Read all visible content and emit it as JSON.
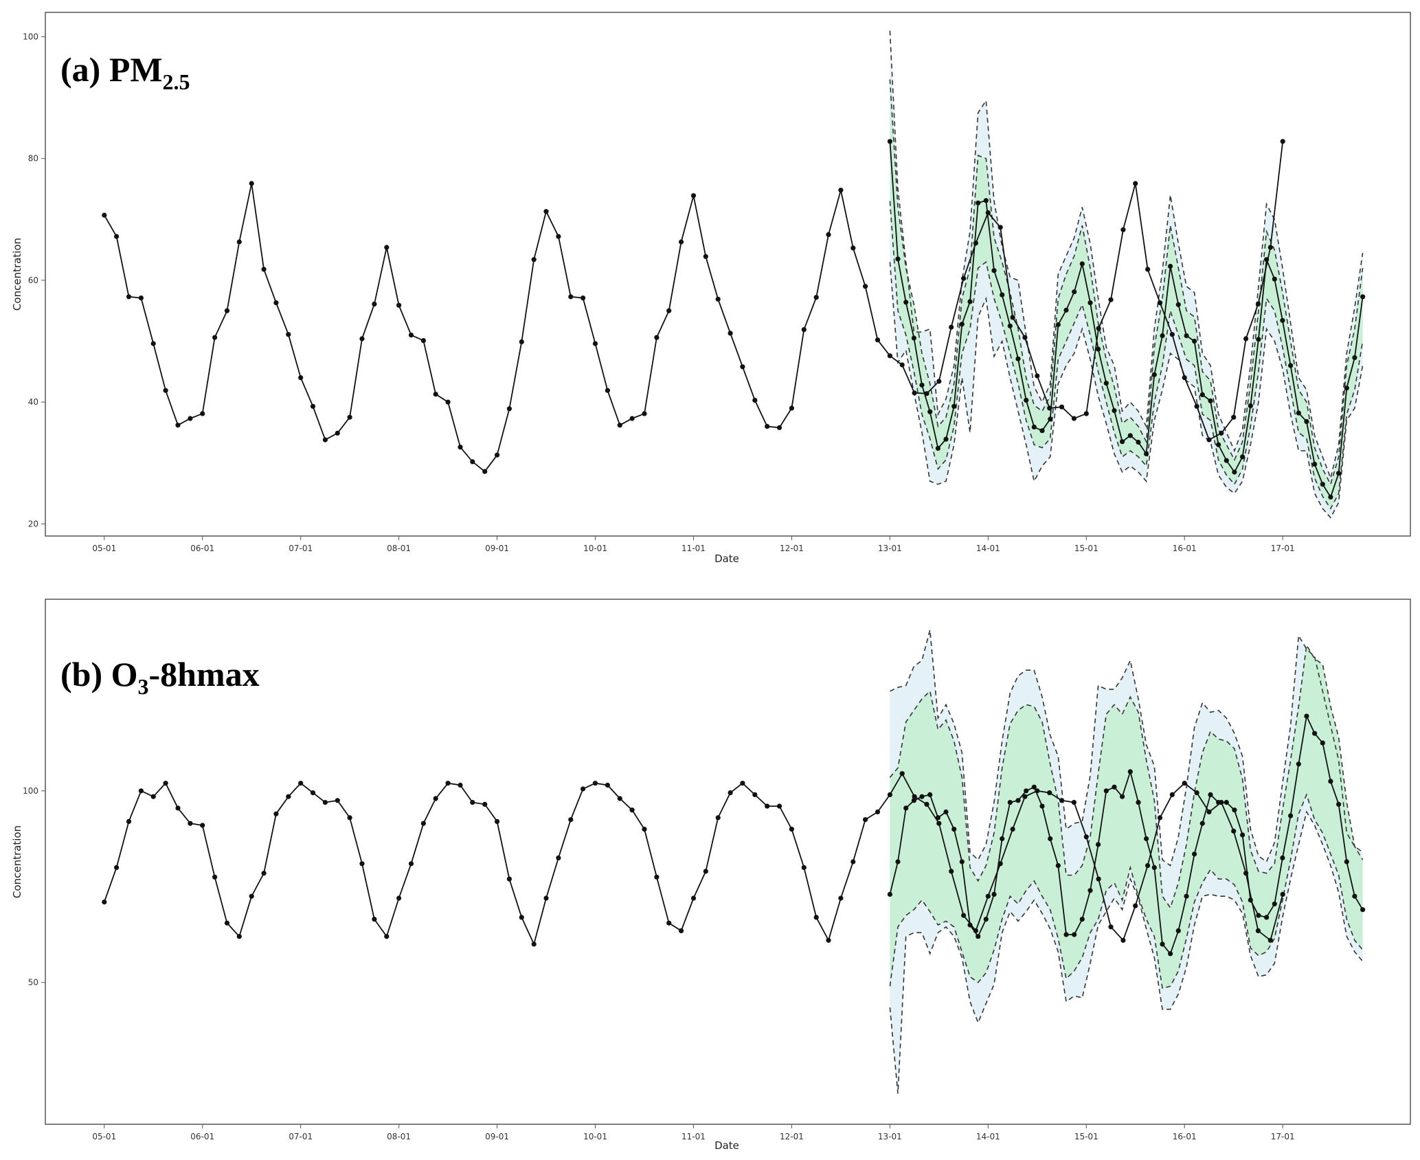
{
  "chart_data": [
    {
      "type": "line",
      "panel_label": "(a)",
      "title_main": "PM",
      "title_sub": "2.5",
      "xlabel": "Date",
      "ylabel": "Concentration",
      "yticks": [
        20,
        40,
        60,
        80,
        100
      ],
      "ylim": [
        18,
        104
      ],
      "xticks": [
        "05-01",
        "06-01",
        "07-01",
        "08-01",
        "09-01",
        "10-01",
        "11-01",
        "12-01",
        "13-01",
        "14-01",
        "15-01",
        "16-01",
        "17-01"
      ],
      "xlim": [
        -0.6,
        13.3
      ],
      "grid": false,
      "colors": {
        "line": "#111111",
        "inner_band": "#c9f0d6",
        "outer_band": "#e4f1f7",
        "bound": "#333333"
      },
      "history": {
        "start": 0,
        "step": 0.125,
        "values": [
          70.7,
          67.2,
          57.3,
          57.1,
          49.6,
          41.9,
          36.2,
          37.3,
          38.1,
          50.6,
          55.0,
          66.3,
          75.9,
          61.8,
          56.3,
          51.1,
          44.0,
          39.3,
          33.8,
          34.9,
          37.5,
          50.4,
          56.1,
          65.4,
          55.9,
          51.0,
          50.1,
          41.3,
          40.0,
          32.6,
          30.2,
          28.6,
          31.3,
          38.9,
          49.9,
          63.4,
          71.3,
          67.2,
          57.3,
          57.1,
          49.6,
          41.9,
          36.2,
          37.3,
          38.1,
          50.6,
          55.0,
          66.3,
          73.9,
          63.9,
          56.9,
          51.3,
          45.8,
          40.3,
          36.0,
          35.8,
          39.0,
          51.9,
          57.2,
          67.5,
          74.8,
          65.3,
          59.0,
          50.2,
          47.6,
          46.1,
          41.5,
          41.4,
          43.4,
          52.3,
          60.3,
          66.1,
          71.1,
          68.7,
          53.9,
          50.6,
          44.3,
          39.0,
          39.2,
          37.3,
          38.1,
          52.1,
          56.8,
          68.3,
          75.9,
          61.8,
          56.3,
          51.1,
          44.0,
          39.3,
          33.8,
          34.9,
          37.5,
          50.4,
          56.1,
          65.4,
          82.8
        ]
      },
      "forecast": {
        "start": 8,
        "step": 0.0816,
        "mean": [
          82.8,
          63.5,
          56.4,
          50.5,
          42.8,
          38.4,
          32.4,
          33.9,
          39.3,
          52.8,
          56.5,
          72.7,
          73.1,
          61.6,
          57.6,
          52.5,
          47.1,
          40.3,
          35.9,
          35.3,
          37.2,
          52.7,
          55.1,
          58.1,
          62.7,
          56.3,
          48.7,
          43.1,
          38.6,
          33.5,
          34.5,
          33.4,
          31.5,
          44.5,
          50.9,
          62.3,
          56.0,
          50.9,
          50.0,
          41.2,
          40.2,
          33.0,
          30.4,
          28.5,
          31.0,
          39.4,
          50.3,
          63.4,
          60.2,
          53.4,
          46.0,
          38.2,
          36.8,
          29.8,
          26.5,
          24.4,
          28.3,
          42.3,
          47.3,
          57.3
        ],
        "inner_lower": [
          73.0,
          55.0,
          51.0,
          45.0,
          38.0,
          34.0,
          29.0,
          30.5,
          36.0,
          48.0,
          52.0,
          62.0,
          63.0,
          57.0,
          53.0,
          48.0,
          43.0,
          37.0,
          33.0,
          32.5,
          34.0,
          47.0,
          50.0,
          53.0,
          56.0,
          51.0,
          45.0,
          40.0,
          35.0,
          31.0,
          32.0,
          31.0,
          29.5,
          40.0,
          46.0,
          55.0,
          51.0,
          47.0,
          46.0,
          38.0,
          37.0,
          30.5,
          28.0,
          26.5,
          29.0,
          36.0,
          45.0,
          57.0,
          55.0,
          49.0,
          42.0,
          35.0,
          34.0,
          27.5,
          24.5,
          22.5,
          25.0,
          38.0,
          42.0,
          50.0
        ],
        "inner_upper": [
          93.0,
          72.0,
          62.0,
          56.0,
          48.0,
          43.0,
          36.0,
          37.5,
          43.0,
          57.0,
          62.0,
          80.5,
          80.0,
          67.0,
          63.0,
          58.0,
          52.0,
          44.0,
          39.5,
          38.5,
          41.0,
          57.0,
          61.0,
          64.0,
          69.0,
          62.0,
          53.0,
          47.0,
          42.5,
          36.5,
          37.5,
          36.0,
          33.5,
          49.0,
          57.0,
          69.0,
          62.0,
          55.0,
          54.0,
          45.0,
          43.5,
          35.5,
          33.0,
          30.5,
          33.5,
          43.0,
          55.0,
          68.0,
          65.0,
          58.0,
          50.0,
          42.0,
          40.0,
          32.5,
          29.0,
          26.5,
          31.0,
          46.0,
          52.0,
          62.0
        ],
        "outer_lower": [
          63.0,
          46.5,
          48.5,
          41.5,
          35.0,
          27.0,
          26.5,
          27.0,
          33.0,
          44.0,
          35.0,
          54.0,
          57.0,
          47.5,
          50.0,
          44.0,
          38.5,
          33.0,
          27.0,
          29.5,
          31.0,
          43.0,
          46.0,
          48.0,
          52.0,
          47.0,
          41.0,
          36.5,
          31.5,
          28.5,
          29.5,
          28.5,
          27.0,
          37.0,
          42.0,
          48.0,
          47.0,
          43.5,
          42.5,
          34.5,
          33.5,
          28.0,
          26.0,
          25.0,
          27.0,
          33.0,
          40.0,
          52.0,
          50.0,
          45.5,
          38.0,
          32.0,
          32.0,
          25.0,
          22.5,
          21.0,
          23.5,
          37.0,
          39.0,
          46.0
        ],
        "outer_upper": [
          101.0,
          75.0,
          63.0,
          51.5,
          51.5,
          52.0,
          38.0,
          40.5,
          46.0,
          60.0,
          68.0,
          87.5,
          89.5,
          73.0,
          65.5,
          60.5,
          60.0,
          51.0,
          42.5,
          40.0,
          43.0,
          61.0,
          64.0,
          67.0,
          72.0,
          66.0,
          57.0,
          49.0,
          46.0,
          38.5,
          40.0,
          38.5,
          36.0,
          52.0,
          61.5,
          74.0,
          66.0,
          59.0,
          58.0,
          48.0,
          46.0,
          38.0,
          35.0,
          32.0,
          35.5,
          46.0,
          59.0,
          72.5,
          70.0,
          62.0,
          53.0,
          44.0,
          42.0,
          34.5,
          31.0,
          27.5,
          33.0,
          48.0,
          55.5,
          64.5
        ]
      }
    },
    {
      "type": "line",
      "panel_label": "(b)",
      "title_main": "O",
      "title_sub": "3",
      "title_tail": "-8hmax",
      "xlabel": "Date",
      "ylabel": "Concentration",
      "yticks": [
        50,
        100
      ],
      "ylim": [
        13,
        150
      ],
      "xticks": [
        "05-01",
        "06-01",
        "07-01",
        "08-01",
        "09-01",
        "10-01",
        "11-01",
        "12-01",
        "13-01",
        "14-01",
        "15-01",
        "16-01",
        "17-01"
      ],
      "xlim": [
        -0.6,
        13.3
      ],
      "grid": false,
      "colors": {
        "line": "#111111",
        "inner_band": "#c9f0d6",
        "outer_band": "#e4f1f7",
        "bound": "#333333"
      },
      "history": {
        "start": 0,
        "step": 0.125,
        "values": [
          71.0,
          80.0,
          92.0,
          100.0,
          98.5,
          102.0,
          95.5,
          91.5,
          91.0,
          77.5,
          65.5,
          62.0,
          72.5,
          78.5,
          94.0,
          98.5,
          102.0,
          99.5,
          97.0,
          97.5,
          93.0,
          81.0,
          66.5,
          62.0,
          72.0,
          81.0,
          91.5,
          98.0,
          102.0,
          101.5,
          97.0,
          96.5,
          92.0,
          77.0,
          67.0,
          60.0,
          72.0,
          82.5,
          92.5,
          100.5,
          102.0,
          101.5,
          98.0,
          95.0,
          90.0,
          77.5,
          65.5,
          63.5,
          72.0,
          79.0,
          93.0,
          99.5,
          102.0,
          99.0,
          96.0,
          96.0,
          90.0,
          80.0,
          67.0,
          61.0,
          72.0,
          81.5,
          92.5,
          94.5,
          99.0,
          104.5,
          98.5,
          96.5,
          91.5,
          79.0,
          67.5,
          63.5,
          72.5,
          81.0,
          90.0,
          98.5,
          100.0,
          99.5,
          97.5,
          97.0,
          88.0,
          77.0,
          64.5,
          61.0,
          70.0,
          80.5,
          93.0,
          99.0,
          102.0,
          99.5,
          94.5,
          97.0,
          89.5,
          78.5,
          63.5,
          61.0,
          73.0
        ]
      },
      "forecast": {
        "start": 8,
        "step": 0.0816,
        "mean": [
          73.0,
          81.5,
          95.5,
          97.5,
          98.5,
          99.0,
          93.0,
          94.5,
          90.0,
          81.5,
          65.0,
          62.0,
          66.5,
          73.0,
          87.5,
          97.0,
          97.5,
          100.0,
          101.0,
          96.0,
          87.5,
          80.5,
          62.5,
          62.5,
          66.5,
          74.0,
          86.0,
          100.0,
          101.0,
          98.5,
          105.0,
          97.0,
          87.5,
          80.0,
          60.0,
          57.5,
          63.5,
          72.5,
          83.5,
          91.5,
          99.0,
          97.0,
          97.0,
          95.0,
          88.5,
          71.5,
          67.5,
          67.0,
          70.5,
          82.5,
          93.5,
          107.0,
          119.5,
          115.0,
          112.5,
          102.5,
          96.5,
          81.5,
          72.5,
          69.0
        ],
        "inner_lower": [
          49.0,
          64.5,
          67.5,
          69.0,
          71.5,
          68.5,
          65.0,
          66.0,
          64.5,
          58.0,
          51.5,
          50.0,
          52.5,
          58.5,
          66.5,
          72.5,
          70.5,
          74.0,
          76.5,
          72.5,
          69.0,
          61.5,
          51.0,
          53.0,
          56.5,
          63.0,
          66.5,
          74.0,
          76.0,
          71.5,
          80.0,
          72.5,
          66.5,
          62.0,
          48.5,
          49.0,
          53.0,
          61.5,
          71.0,
          76.0,
          79.5,
          77.0,
          77.0,
          75.5,
          71.0,
          59.0,
          57.0,
          58.0,
          61.5,
          71.5,
          82.0,
          94.0,
          99.0,
          92.5,
          89.0,
          83.5,
          78.0,
          66.5,
          61.0,
          58.5
        ],
        "inner_upper": [
          103.5,
          106.0,
          118.0,
          121.0,
          124.0,
          126.0,
          116.0,
          118.5,
          113.0,
          103.5,
          80.0,
          76.5,
          80.5,
          89.0,
          106.0,
          117.5,
          121.0,
          122.5,
          122.0,
          118.0,
          107.0,
          97.5,
          78.0,
          78.0,
          80.5,
          88.0,
          104.5,
          120.0,
          122.5,
          120.0,
          124.5,
          120.5,
          108.0,
          97.5,
          72.5,
          69.5,
          76.0,
          86.0,
          99.5,
          110.0,
          115.5,
          113.5,
          113.0,
          111.0,
          103.0,
          84.5,
          79.0,
          78.5,
          81.0,
          95.0,
          108.0,
          122.0,
          138.0,
          134.5,
          133.0,
          122.0,
          114.0,
          97.0,
          85.5,
          82.0
        ],
        "outer_lower": [
          43.5,
          21.0,
          62.0,
          63.0,
          63.0,
          57.5,
          63.0,
          64.5,
          62.0,
          56.5,
          45.0,
          39.5,
          44.5,
          49.5,
          63.0,
          68.5,
          66.0,
          68.5,
          71.5,
          68.0,
          64.0,
          58.0,
          45.0,
          46.5,
          46.0,
          55.0,
          65.0,
          68.5,
          72.0,
          69.0,
          77.0,
          72.0,
          64.0,
          56.5,
          43.0,
          43.0,
          47.0,
          54.0,
          65.0,
          72.5,
          73.0,
          72.5,
          72.5,
          71.5,
          68.0,
          57.0,
          51.5,
          52.0,
          55.0,
          67.0,
          77.0,
          86.0,
          94.5,
          91.0,
          86.0,
          80.5,
          73.5,
          62.0,
          58.0,
          55.5
        ],
        "outer_upper": [
          126.0,
          127.0,
          127.5,
          132.5,
          134.0,
          142.0,
          119.0,
          122.5,
          117.5,
          110.0,
          84.0,
          82.0,
          86.0,
          97.0,
          113.0,
          125.5,
          130.0,
          131.5,
          131.5,
          124.5,
          114.5,
          109.0,
          90.0,
          91.5,
          92.0,
          104.0,
          127.5,
          126.5,
          126.5,
          129.5,
          134.0,
          124.0,
          112.0,
          106.5,
          82.0,
          80.5,
          88.0,
          101.0,
          116.5,
          123.0,
          120.5,
          121.0,
          119.0,
          115.0,
          109.0,
          90.0,
          83.0,
          81.5,
          86.5,
          102.0,
          117.0,
          140.5,
          137.0,
          135.0,
          126.0,
          117.0,
          108.0,
          89.0,
          85.5,
          84.0
        ]
      }
    }
  ]
}
